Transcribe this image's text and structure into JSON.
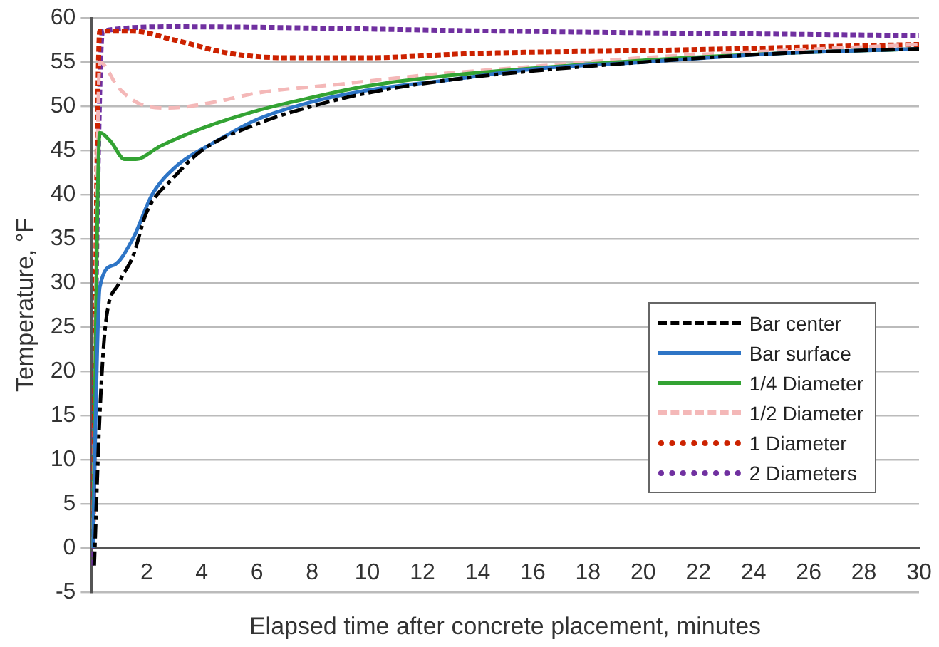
{
  "chart_data": {
    "type": "line",
    "xlabel": "Elapsed time after concrete placement, minutes",
    "ylabel": "Temperature, °F",
    "xlim": [
      0,
      30
    ],
    "xticks": [
      2,
      4,
      6,
      8,
      10,
      12,
      14,
      16,
      18,
      20,
      22,
      24,
      26,
      28,
      30
    ],
    "ylim": [
      -5,
      60
    ],
    "yticks": [
      -5,
      0,
      5,
      10,
      15,
      20,
      25,
      30,
      35,
      40,
      45,
      50,
      55,
      60
    ],
    "grid": "y",
    "legend": "bottom right",
    "marker": "none",
    "series": [
      {
        "name": "Bar center",
        "color": "#000000",
        "line_style": "dashdot",
        "x": [
          0.1,
          0.3,
          0.5,
          1,
          1.5,
          2,
          3,
          4,
          6,
          8,
          10,
          13,
          16,
          20,
          25,
          30
        ],
        "values": [
          -2,
          15,
          25,
          30,
          33,
          38,
          42,
          45,
          48,
          50,
          51.5,
          53,
          54,
          55,
          56,
          56.5
        ]
      },
      {
        "name": "Bar surface",
        "color": "#2e75c6",
        "line_style": "solid",
        "x": [
          0.05,
          0.3,
          0.8,
          1.5,
          2.2,
          3,
          4.5,
          6,
          8,
          10,
          13,
          16,
          20,
          25,
          30
        ],
        "values": [
          0,
          29.5,
          32,
          35,
          40,
          43,
          46,
          48.5,
          50.5,
          51.8,
          53,
          54.2,
          55,
          56,
          56.5
        ]
      },
      {
        "name": "1/4 Diameter",
        "color": "#33a333",
        "line_style": "solid",
        "x": [
          0.05,
          0.3,
          0.7,
          1.2,
          1.6,
          2.5,
          4,
          6,
          8,
          10,
          13,
          16,
          20,
          25,
          30
        ],
        "values": [
          0,
          47,
          46,
          44,
          44,
          45.5,
          47.5,
          49.5,
          51,
          52.3,
          53.5,
          54.3,
          55.2,
          56,
          56.5
        ]
      },
      {
        "name": "1/2 Diameter",
        "color": "#f4b8b8",
        "line_style": "dashed",
        "x": [
          0.05,
          0.3,
          1,
          2,
          2.8,
          4.5,
          6,
          9,
          12,
          16,
          20,
          25,
          30
        ],
        "values": [
          0,
          55,
          52,
          50,
          49.8,
          50.5,
          51.5,
          52.5,
          53.5,
          54.5,
          55.5,
          56.3,
          57
        ]
      },
      {
        "name": "1 Diameter",
        "color": "#cc2200",
        "line_style": "dotted",
        "x": [
          0.05,
          0.3,
          1.5,
          3,
          5,
          7,
          10,
          14,
          20,
          30
        ],
        "values": [
          0,
          58.5,
          58.5,
          57.5,
          56,
          55.5,
          55.5,
          56,
          56.3,
          57
        ]
      },
      {
        "name": "2 Diameters",
        "color": "#7030a0",
        "line_style": "dotted",
        "x": [
          0,
          0.4,
          3,
          15,
          30
        ],
        "values": [
          -2,
          58.5,
          59,
          58.5,
          58
        ]
      }
    ]
  }
}
